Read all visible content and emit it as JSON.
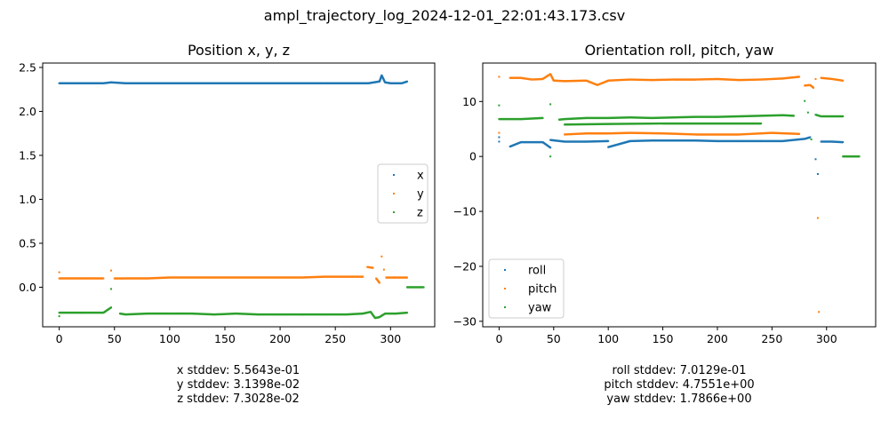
{
  "suptitle": "ampl_trajectory_log_2024-12-01_22:01:43.173.csv",
  "stats_left": [
    "x stddev: 5.5643e-01",
    "y stddev: 3.1398e-02",
    "z stddev: 7.3028e-02"
  ],
  "stats_right": [
    "roll stddev: 7.0129e-01",
    "pitch stddev: 4.7551e+00",
    "yaw stddev: 1.7866e+00"
  ],
  "colors": {
    "blue": "#1f77b4",
    "orange": "#ff7f0e",
    "green": "#2ca02c"
  },
  "chart_data": [
    {
      "type": "scatter",
      "title": "Position x, y, z",
      "xlabel": "",
      "ylabel": "",
      "xlim": [
        -15,
        340
      ],
      "ylim": [
        -0.45,
        2.55
      ],
      "xticks": [
        0,
        50,
        100,
        150,
        200,
        250,
        300
      ],
      "yticks": [
        0.0,
        0.5,
        1.0,
        1.5,
        2.0,
        2.5
      ],
      "ytick_labels": [
        "0.0",
        "0.5",
        "1.0",
        "1.5",
        "2.0",
        "2.5"
      ],
      "legend": "center-right",
      "series": [
        {
          "name": "x",
          "color": "#1f77b4",
          "points": [
            [
              0,
              2.32
            ],
            [
              20,
              2.32
            ],
            [
              40,
              2.32
            ],
            [
              47,
              2.33
            ],
            [
              60,
              2.32
            ],
            [
              80,
              2.32
            ],
            [
              100,
              2.32
            ],
            [
              120,
              2.32
            ],
            [
              140,
              2.32
            ],
            [
              160,
              2.32
            ],
            [
              180,
              2.32
            ],
            [
              200,
              2.32
            ],
            [
              220,
              2.32
            ],
            [
              240,
              2.32
            ],
            [
              260,
              2.32
            ],
            [
              280,
              2.32
            ],
            [
              285,
              2.33
            ],
            [
              290,
              2.34
            ],
            [
              292,
              2.41
            ],
            [
              295,
              2.33
            ],
            [
              300,
              2.32
            ],
            [
              310,
              2.32
            ],
            [
              315,
              2.34
            ]
          ]
        },
        {
          "name": "y",
          "color": "#ff7f0e",
          "points": [
            [
              0,
              0.17
            ],
            [
              0,
              0.1
            ],
            [
              20,
              0.1
            ],
            [
              40,
              0.1
            ],
            [
              47,
              0.19
            ],
            [
              50,
              0.1
            ],
            [
              60,
              0.1
            ],
            [
              80,
              0.1
            ],
            [
              100,
              0.11
            ],
            [
              120,
              0.11
            ],
            [
              140,
              0.11
            ],
            [
              160,
              0.11
            ],
            [
              180,
              0.11
            ],
            [
              200,
              0.11
            ],
            [
              220,
              0.11
            ],
            [
              240,
              0.12
            ],
            [
              260,
              0.12
            ],
            [
              275,
              0.12
            ],
            [
              279,
              0.23
            ],
            [
              284,
              0.22
            ],
            [
              287,
              0.1
            ],
            [
              290,
              0.05
            ],
            [
              292,
              0.35
            ],
            [
              294,
              0.2
            ],
            [
              296,
              0.11
            ],
            [
              305,
              0.11
            ],
            [
              315,
              0.11
            ]
          ]
        },
        {
          "name": "z",
          "color": "#2ca02c",
          "points": [
            [
              0,
              -0.33
            ],
            [
              0,
              -0.29
            ],
            [
              20,
              -0.29
            ],
            [
              40,
              -0.29
            ],
            [
              47,
              -0.23
            ],
            [
              47,
              -0.02
            ],
            [
              55,
              -0.3
            ],
            [
              60,
              -0.31
            ],
            [
              80,
              -0.3
            ],
            [
              100,
              -0.3
            ],
            [
              120,
              -0.3
            ],
            [
              140,
              -0.31
            ],
            [
              160,
              -0.3
            ],
            [
              180,
              -0.31
            ],
            [
              200,
              -0.31
            ],
            [
              220,
              -0.31
            ],
            [
              240,
              -0.31
            ],
            [
              260,
              -0.31
            ],
            [
              275,
              -0.3
            ],
            [
              282,
              -0.28
            ],
            [
              286,
              -0.35
            ],
            [
              290,
              -0.34
            ],
            [
              295,
              -0.3
            ],
            [
              305,
              -0.3
            ],
            [
              315,
              -0.29
            ],
            [
              315,
              0.0
            ],
            [
              320,
              0.0
            ],
            [
              325,
              0.0
            ],
            [
              330,
              0.0
            ]
          ]
        }
      ]
    },
    {
      "type": "scatter",
      "title": "Orientation roll, pitch, yaw",
      "xlabel": "",
      "ylabel": "",
      "xlim": [
        -15,
        345
      ],
      "ylim": [
        -31,
        17
      ],
      "xticks": [
        0,
        50,
        100,
        150,
        200,
        250,
        300
      ],
      "yticks": [
        -30,
        -20,
        -10,
        0,
        10
      ],
      "ytick_labels": [
        "−30",
        "−20",
        "−10",
        "0",
        "10"
      ],
      "legend": "lower-left",
      "series": [
        {
          "name": "roll",
          "color": "#1f77b4",
          "points": [
            [
              0,
              2.7
            ],
            [
              0,
              3.5
            ],
            [
              10,
              1.8
            ],
            [
              20,
              2.6
            ],
            [
              40,
              2.6
            ],
            [
              47,
              1.6
            ],
            [
              47,
              3.0
            ],
            [
              60,
              2.7
            ],
            [
              80,
              2.7
            ],
            [
              100,
              2.8
            ],
            [
              100,
              1.7
            ],
            [
              120,
              2.8
            ],
            [
              140,
              2.9
            ],
            [
              160,
              2.9
            ],
            [
              180,
              2.9
            ],
            [
              200,
              2.8
            ],
            [
              220,
              2.8
            ],
            [
              240,
              2.8
            ],
            [
              260,
              2.8
            ],
            [
              280,
              3.2
            ],
            [
              285,
              3.5
            ],
            [
              290,
              -0.5
            ],
            [
              292,
              -3.2
            ],
            [
              295,
              2.7
            ],
            [
              305,
              2.7
            ],
            [
              315,
              2.6
            ]
          ]
        },
        {
          "name": "pitch",
          "color": "#ff7f0e",
          "points": [
            [
              0,
              14.5
            ],
            [
              0,
              4.3
            ],
            [
              10,
              14.3
            ],
            [
              20,
              14.3
            ],
            [
              30,
              14.0
            ],
            [
              40,
              14.1
            ],
            [
              47,
              15.0
            ],
            [
              50,
              13.8
            ],
            [
              60,
              13.7
            ],
            [
              80,
              13.8
            ],
            [
              90,
              13.0
            ],
            [
              100,
              13.8
            ],
            [
              120,
              14.0
            ],
            [
              140,
              13.9
            ],
            [
              160,
              14.0
            ],
            [
              180,
              14.0
            ],
            [
              200,
              14.1
            ],
            [
              220,
              13.9
            ],
            [
              240,
              14.0
            ],
            [
              260,
              14.2
            ],
            [
              275,
              14.5
            ],
            [
              280,
              12.9
            ],
            [
              285,
              13.0
            ],
            [
              288,
              12.5
            ],
            [
              290,
              14.1
            ],
            [
              292,
              -11.2
            ],
            [
              293,
              -28.3
            ],
            [
              295,
              14.3
            ],
            [
              305,
              14.1
            ],
            [
              315,
              13.8
            ],
            [
              60,
              4.0
            ],
            [
              80,
              4.2
            ],
            [
              100,
              4.2
            ],
            [
              120,
              4.3
            ],
            [
              150,
              4.2
            ],
            [
              180,
              4.0
            ],
            [
              220,
              4.0
            ],
            [
              250,
              4.3
            ],
            [
              275,
              4.1
            ]
          ]
        },
        {
          "name": "yaw",
          "color": "#2ca02c",
          "points": [
            [
              0,
              9.3
            ],
            [
              0,
              6.8
            ],
            [
              20,
              6.8
            ],
            [
              40,
              7.0
            ],
            [
              47,
              9.5
            ],
            [
              47,
              0.0
            ],
            [
              55,
              6.7
            ],
            [
              60,
              6.8
            ],
            [
              80,
              7.0
            ],
            [
              100,
              7.0
            ],
            [
              120,
              7.1
            ],
            [
              140,
              7.0
            ],
            [
              160,
              7.1
            ],
            [
              180,
              7.2
            ],
            [
              200,
              7.2
            ],
            [
              220,
              7.3
            ],
            [
              240,
              7.4
            ],
            [
              260,
              7.5
            ],
            [
              270,
              7.4
            ],
            [
              280,
              10.1
            ],
            [
              283,
              8.0
            ],
            [
              286,
              3.1
            ],
            [
              290,
              7.6
            ],
            [
              295,
              7.3
            ],
            [
              305,
              7.3
            ],
            [
              315,
              7.3
            ],
            [
              315,
              0.0
            ],
            [
              320,
              0.0
            ],
            [
              325,
              0.0
            ],
            [
              330,
              0.0
            ],
            [
              60,
              5.8
            ],
            [
              100,
              5.9
            ],
            [
              150,
              6.0
            ],
            [
              200,
              6.0
            ],
            [
              240,
              6.0
            ]
          ]
        }
      ]
    }
  ]
}
